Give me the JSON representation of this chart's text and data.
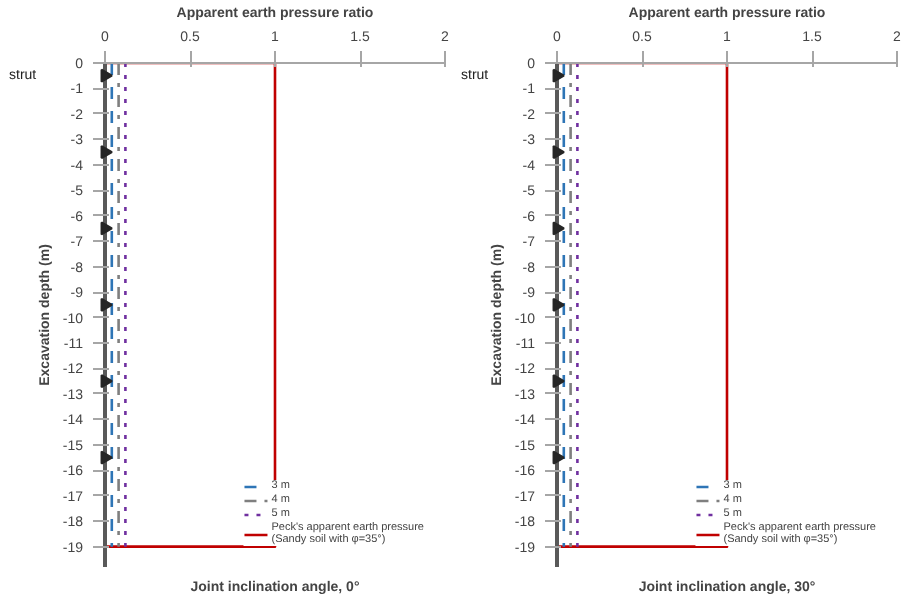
{
  "chart_data": [
    {
      "type": "line",
      "title": "Joint inclination angle, 0°",
      "xlabel": "Apparent earth pressure ratio",
      "ylabel": "Excavation depth (m)",
      "xlim": [
        0,
        2
      ],
      "xticks": [
        {
          "value": 0,
          "label": "0"
        },
        0.5,
        1,
        1.5,
        2
      ],
      "ylim": [
        -19.8,
        0
      ],
      "yticks": [
        0,
        -1,
        -2,
        -3,
        -4,
        -5,
        -6,
        -7,
        -8,
        -9,
        -10,
        -11,
        -12,
        -13,
        -14,
        -15,
        -16,
        -17,
        -18,
        -19
      ],
      "grid": false,
      "legend": "bottom right",
      "annotations": [
        "strut"
      ],
      "series": [
        {
          "name": "Peck's apparent earth pressure\n(Sandy soil with φ=35°)",
          "color": "#c00000",
          "line_style": "solid",
          "x": [
            0,
            1,
            1,
            0
          ],
          "values": [
            0,
            0,
            -19,
            -19
          ]
        },
        {
          "name": "3 m",
          "color": "#2e75b6",
          "line_style": "dashed",
          "x": [
            0.04,
            0.04
          ],
          "values": [
            0,
            -19
          ]
        },
        {
          "name": "4 m",
          "color": "#7f7f7f",
          "line_style": "dashdot",
          "x": [
            0.08,
            0.08
          ],
          "values": [
            0,
            -19
          ]
        },
        {
          "name": "5 m",
          "color": "#7030a0",
          "line_style": "dotted",
          "x": [
            0.12,
            0.12
          ],
          "values": [
            0,
            -19
          ]
        },
        {
          "type": "scatter",
          "marker": "triangle",
          "color": "#262626",
          "x": [
            0,
            0,
            0,
            0,
            0,
            0
          ],
          "values": [
            -0.5,
            -3.5,
            -6.5,
            -9.5,
            -12.5,
            -15.5
          ]
        }
      ]
    },
    {
      "type": "line",
      "title": "Joint inclination angle, 30°",
      "xlabel": "Apparent earth pressure ratio",
      "ylabel": "Excavation depth (m)",
      "xlim": [
        0,
        2
      ],
      "xticks": [
        {
          "value": 0,
          "label": "0"
        },
        0.5,
        1,
        1.5,
        2
      ],
      "ylim": [
        -19.8,
        0
      ],
      "yticks": [
        0,
        -1,
        -2,
        -3,
        -4,
        -5,
        -6,
        -7,
        -8,
        -9,
        -10,
        -11,
        -12,
        -13,
        -14,
        -15,
        -16,
        -17,
        -18,
        -19
      ],
      "grid": false,
      "legend": "bottom right",
      "annotations": [
        "strut"
      ],
      "series": [
        {
          "name": "Peck's apparent earth pressure\n(Sandy soil with φ=35°)",
          "color": "#c00000",
          "line_style": "solid",
          "x": [
            0,
            1,
            1,
            0
          ],
          "values": [
            0,
            0,
            -19,
            -19
          ]
        },
        {
          "name": "3 m",
          "color": "#2e75b6",
          "line_style": "dashed",
          "x": [
            0.04,
            0.04
          ],
          "values": [
            0,
            -19
          ]
        },
        {
          "name": "4 m",
          "color": "#7f7f7f",
          "line_style": "dashdot",
          "x": [
            0.08,
            0.08
          ],
          "values": [
            0,
            -19
          ]
        },
        {
          "name": "5 m",
          "color": "#7030a0",
          "line_style": "dotted",
          "x": [
            0.12,
            0.12
          ],
          "values": [
            0,
            -19
          ]
        },
        {
          "type": "scatter",
          "marker": "triangle",
          "color": "#262626",
          "x": [
            0,
            0,
            0,
            0,
            0,
            0
          ],
          "values": [
            -0.5,
            -3.5,
            -6.5,
            -9.5,
            -12.5,
            -15.5
          ]
        }
      ]
    }
  ]
}
